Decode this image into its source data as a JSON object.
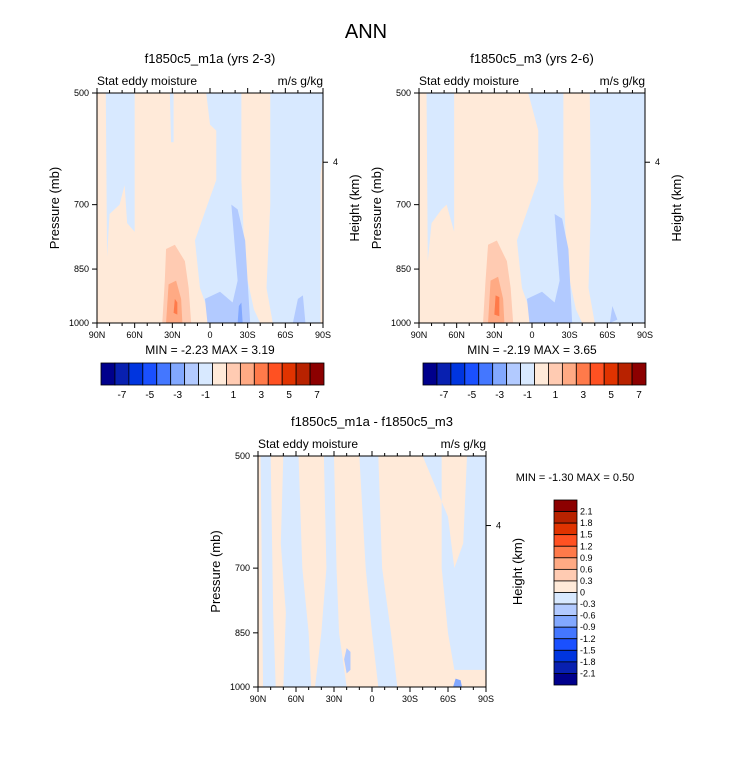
{
  "title": "ANN",
  "chart_data": [
    {
      "type": "heatmap",
      "title": "f1850c5_m1a (yrs 2-3)",
      "left_label": "Stat eddy moisture",
      "right_label": "m/s g/kg",
      "ylabel": "Pressure (mb)",
      "ylabel_right": "Height (km)",
      "xticks": [
        "90N",
        "60N",
        "30N",
        "0",
        "30S",
        "60S",
        "90S"
      ],
      "xtick_values": [
        90,
        60,
        30,
        0,
        -30,
        -60,
        -90
      ],
      "yticks": [
        "500",
        "700",
        "850",
        "1000"
      ],
      "ytick_values": [
        500,
        700,
        850,
        1000
      ],
      "height_ticks": [
        {
          "label": "4",
          "pressure": 616
        }
      ],
      "stats": "MIN =  -2.23  MAX =   3.19",
      "regions": [
        {
          "level": 8,
          "poly": [
            [
              90,
              500
            ],
            [
              -90,
              500
            ],
            [
              -90,
              1000
            ],
            [
              90,
              1000
            ]
          ]
        },
        {
          "level": 7,
          "poly": [
            [
              83,
              500
            ],
            [
              60,
              500
            ],
            [
              60,
              760
            ],
            [
              66,
              740
            ],
            [
              68,
              660
            ],
            [
              72,
              700
            ],
            [
              80,
              720
            ],
            [
              82,
              820
            ],
            [
              83,
              500
            ]
          ]
        },
        {
          "level": 7,
          "poly": [
            [
              5,
              500
            ],
            [
              -25,
              500
            ],
            [
              -25,
              650
            ],
            [
              -28,
              850
            ],
            [
              -35,
              960
            ],
            [
              -40,
              1000
            ],
            [
              -2,
              1000
            ],
            [
              8,
              900
            ],
            [
              12,
              780
            ],
            [
              2,
              700
            ],
            [
              -5,
              650
            ],
            [
              -5,
              560
            ],
            [
              0,
              550
            ],
            [
              3,
              500
            ]
          ]
        },
        {
          "level": 7,
          "poly": [
            [
              -48,
              500
            ],
            [
              -90,
              500
            ],
            [
              -90,
              600
            ],
            [
              -88,
              640
            ],
            [
              -88,
              1000
            ],
            [
              -50,
              1000
            ],
            [
              -45,
              900
            ],
            [
              -48,
              700
            ]
          ]
        },
        {
          "level": 7,
          "poly": [
            [
              32,
              500
            ],
            [
              29,
              500
            ],
            [
              29,
              580
            ],
            [
              31,
              580
            ]
          ]
        },
        {
          "level": 6,
          "poly": [
            [
              2,
              1000
            ],
            [
              4,
              930
            ],
            [
              -8,
              910
            ],
            [
              -18,
              940
            ],
            [
              -22,
              880
            ],
            [
              -17,
              700
            ],
            [
              -22,
              710
            ],
            [
              -28,
              780
            ],
            [
              -32,
              1000
            ]
          ]
        },
        {
          "level": 6,
          "poly": [
            [
              -66,
              1000
            ],
            [
              -70,
              930
            ],
            [
              -74,
              920
            ],
            [
              -76,
              1000
            ]
          ]
        },
        {
          "level": 5,
          "poly": [
            [
              -22,
              1000
            ],
            [
              -23,
              950
            ],
            [
              -25,
              940
            ],
            [
              -26,
              1000
            ]
          ]
        },
        {
          "level": 9,
          "poly": [
            [
              38,
              1000
            ],
            [
              36,
              880
            ],
            [
              35,
              800
            ],
            [
              28,
              790
            ],
            [
              20,
              830
            ],
            [
              17,
              900
            ],
            [
              15,
              1000
            ]
          ]
        },
        {
          "level": 10,
          "poly": [
            [
              35,
              1000
            ],
            [
              33,
              890
            ],
            [
              27,
              880
            ],
            [
              23,
              930
            ],
            [
              22,
              1000
            ]
          ]
        },
        {
          "level": 11,
          "poly": [
            [
              29,
              970
            ],
            [
              28,
              930
            ],
            [
              26,
              940
            ],
            [
              26,
              975
            ]
          ]
        }
      ]
    },
    {
      "type": "heatmap",
      "title": "f1850c5_m3 (yrs 2-6)",
      "left_label": "Stat eddy moisture",
      "right_label": "m/s g/kg",
      "ylabel": "Pressure (mb)",
      "ylabel_right": "Height (km)",
      "xticks": [
        "90N",
        "60N",
        "30N",
        "0",
        "30S",
        "60S",
        "90S"
      ],
      "xtick_values": [
        90,
        60,
        30,
        0,
        -30,
        -60,
        -90
      ],
      "yticks": [
        "500",
        "700",
        "850",
        "1000"
      ],
      "ytick_values": [
        500,
        700,
        850,
        1000
      ],
      "height_ticks": [
        {
          "label": "4",
          "pressure": 616
        }
      ],
      "stats": "MIN =  -2.19  MAX =   3.65",
      "regions": [
        {
          "level": 8,
          "poly": [
            [
              90,
              500
            ],
            [
              -90,
              500
            ],
            [
              -90,
              1000
            ],
            [
              90,
              1000
            ]
          ]
        },
        {
          "level": 7,
          "poly": [
            [
              84,
              500
            ],
            [
              62,
              500
            ],
            [
              62,
              760
            ],
            [
              68,
              700
            ],
            [
              72,
              710
            ],
            [
              80,
              740
            ],
            [
              83,
              830
            ],
            [
              84,
              500
            ]
          ]
        },
        {
          "level": 7,
          "poly": [
            [
              6,
              500
            ],
            [
              -25,
              500
            ],
            [
              -25,
              660
            ],
            [
              -28,
              850
            ],
            [
              -35,
              960
            ],
            [
              -40,
              1000
            ],
            [
              -2,
              1000
            ],
            [
              8,
              900
            ],
            [
              12,
              780
            ],
            [
              2,
              700
            ],
            [
              -5,
              650
            ],
            [
              -5,
              560
            ],
            [
              3,
              500
            ]
          ]
        },
        {
          "level": 7,
          "poly": [
            [
              -46,
              500
            ],
            [
              -90,
              500
            ],
            [
              -90,
              1000
            ],
            [
              -50,
              1000
            ],
            [
              -45,
              900
            ],
            [
              -47,
              700
            ]
          ]
        },
        {
          "level": 6,
          "poly": [
            [
              2,
              1000
            ],
            [
              4,
              930
            ],
            [
              -8,
              910
            ],
            [
              -18,
              940
            ],
            [
              -22,
              880
            ],
            [
              -18,
              720
            ],
            [
              -24,
              730
            ],
            [
              -29,
              800
            ],
            [
              -32,
              1000
            ]
          ]
        },
        {
          "level": 6,
          "poly": [
            [
              -62,
              1000
            ],
            [
              -64,
              950
            ],
            [
              -68,
              990
            ]
          ]
        },
        {
          "level": 9,
          "poly": [
            [
              39,
              1000
            ],
            [
              37,
              880
            ],
            [
              35,
              790
            ],
            [
              28,
              780
            ],
            [
              20,
              830
            ],
            [
              17,
              900
            ],
            [
              15,
              1000
            ]
          ]
        },
        {
          "level": 10,
          "poly": [
            [
              35,
              1000
            ],
            [
              33,
              880
            ],
            [
              27,
              870
            ],
            [
              23,
              930
            ],
            [
              22,
              1000
            ]
          ]
        },
        {
          "level": 11,
          "poly": [
            [
              30,
              975
            ],
            [
              29,
              920
            ],
            [
              26,
              925
            ],
            [
              26,
              980
            ]
          ]
        }
      ]
    },
    {
      "type": "heatmap",
      "title": "f1850c5_m1a - f1850c5_m3",
      "left_label": "Stat eddy moisture",
      "right_label": "m/s g/kg",
      "ylabel": "Pressure (mb)",
      "ylabel_right": "Height (km)",
      "xticks": [
        "90N",
        "60N",
        "30N",
        "0",
        "30S",
        "60S",
        "90S"
      ],
      "xtick_values": [
        90,
        60,
        30,
        0,
        -30,
        -60,
        -90
      ],
      "yticks": [
        "500",
        "700",
        "850",
        "1000"
      ],
      "ytick_values": [
        500,
        700,
        850,
        1000
      ],
      "height_ticks": [
        {
          "label": "4",
          "pressure": 616
        }
      ],
      "stats": "MIN =  -1.30  MAX =   0.50",
      "regions": [
        {
          "level": 8,
          "poly": [
            [
              90,
              500
            ],
            [
              -90,
              500
            ],
            [
              -90,
              1000
            ],
            [
              90,
              1000
            ]
          ]
        },
        {
          "level": 7,
          "poly": [
            [
              88,
              500
            ],
            [
              80,
              500
            ],
            [
              78,
              800
            ],
            [
              76,
              1000
            ],
            [
              86,
              1000
            ],
            [
              87,
              700
            ]
          ]
        },
        {
          "level": 7,
          "poly": [
            [
              70,
              500
            ],
            [
              58,
              500
            ],
            [
              55,
              700
            ],
            [
              50,
              850
            ],
            [
              48,
              1000
            ],
            [
              70,
              1000
            ],
            [
              68,
              800
            ],
            [
              72,
              650
            ]
          ]
        },
        {
          "level": 7,
          "poly": [
            [
              38,
              500
            ],
            [
              30,
              500
            ],
            [
              28,
              700
            ],
            [
              26,
              850
            ],
            [
              20,
              1000
            ],
            [
              45,
              1000
            ],
            [
              40,
              850
            ],
            [
              36,
              700
            ]
          ]
        },
        {
          "level": 7,
          "poly": [
            [
              10,
              500
            ],
            [
              -5,
              500
            ],
            [
              -8,
              700
            ],
            [
              -15,
              850
            ],
            [
              -20,
              1000
            ],
            [
              -5,
              1000
            ],
            [
              0,
              850
            ],
            [
              5,
              700
            ]
          ]
        },
        {
          "level": 7,
          "poly": [
            [
              -40,
              500
            ],
            [
              -55,
              500
            ],
            [
              -55,
              700
            ],
            [
              -60,
              850
            ],
            [
              -65,
              950
            ],
            [
              -90,
              950
            ],
            [
              -90,
              500
            ],
            [
              -75,
              500
            ],
            [
              -72,
              650
            ],
            [
              -65,
              700
            ],
            [
              -60,
              600
            ]
          ]
        },
        {
          "level": 6,
          "poly": [
            [
              22,
              920
            ],
            [
              20,
              890
            ],
            [
              17,
              900
            ],
            [
              17,
              950
            ],
            [
              20,
              960
            ]
          ]
        },
        {
          "level": 5,
          "poly": [
            [
              -64,
              1000
            ],
            [
              -66,
              975
            ],
            [
              -70,
              980
            ],
            [
              -71,
              1000
            ]
          ]
        }
      ]
    }
  ],
  "colorbar": {
    "colors": [
      "#00008c",
      "#0820b0",
      "#0035df",
      "#1a50ff",
      "#4477ff",
      "#82a8ff",
      "#b2caff",
      "#d8e9ff",
      "#ffead9",
      "#ffcbb2",
      "#ffaa84",
      "#ff7a4a",
      "#ff5122",
      "#e03300",
      "#b82200",
      "#8c0000"
    ],
    "labels_small": [
      "-7",
      "-5",
      "-3",
      "-1",
      "1",
      "3",
      "5",
      "7"
    ],
    "labels_diff": [
      "2.1",
      "1.8",
      "1.5",
      "1.2",
      "0.9",
      "0.6",
      "0.3",
      "0",
      "-0.3",
      "-0.6",
      "-0.9",
      "-1.2",
      "-1.5",
      "-1.8",
      "-2.1"
    ]
  }
}
